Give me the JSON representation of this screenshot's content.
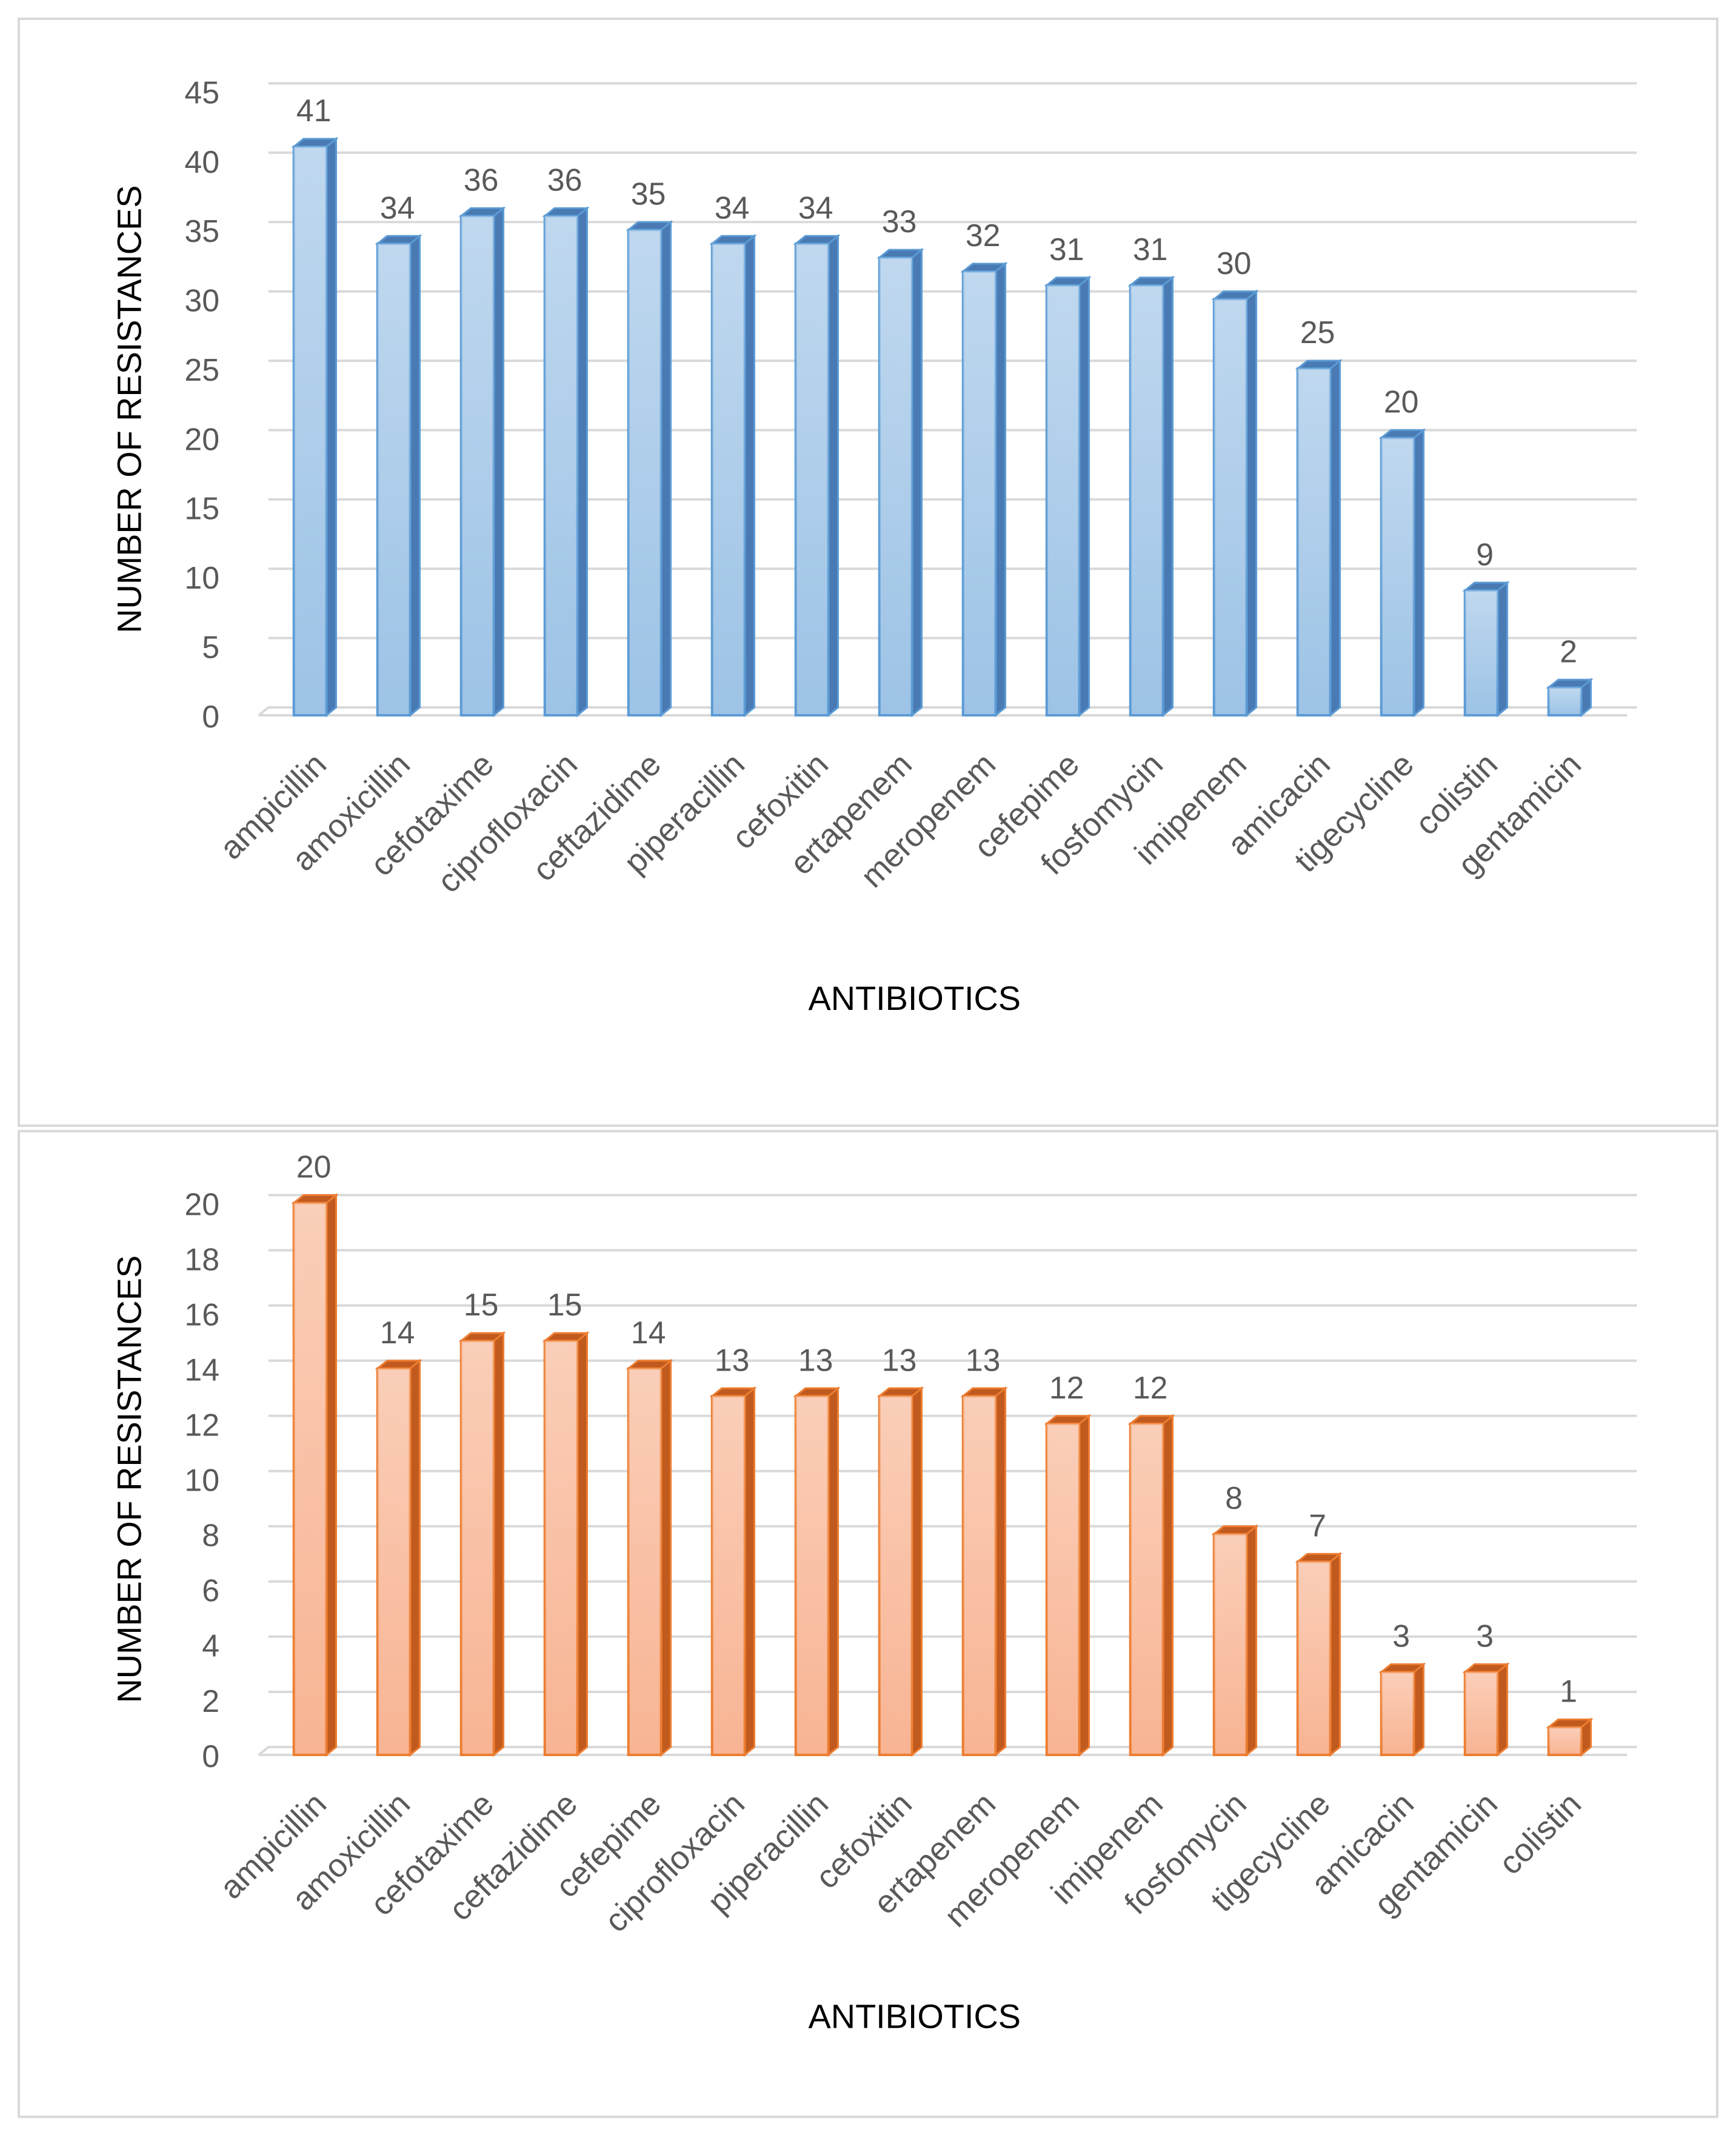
{
  "chart_data": [
    {
      "type": "bar",
      "style": "3d-column",
      "color": "#9dc3e6",
      "color_dark": "#4a7ab3",
      "color_edge": "#5b9bd5",
      "categories": [
        "ampicillin",
        "amoxicillin",
        "cefotaxime",
        "ciprofloxacin",
        "ceftazidime",
        "piperacillin",
        "cefoxitin",
        "ertapenem",
        "meropenem",
        "cefepime",
        "fosfomycin",
        "imipenem",
        "amicacin",
        "tigecycline",
        "colistin",
        "gentamicin"
      ],
      "values": [
        41,
        34,
        36,
        36,
        35,
        34,
        34,
        33,
        32,
        31,
        31,
        30,
        25,
        20,
        9,
        2
      ],
      "value_labels": [
        "41",
        "34",
        "36",
        "36",
        "35",
        "34",
        "34",
        "33",
        "32",
        "31",
        "31",
        "30",
        "25",
        "20",
        "9",
        "2"
      ],
      "yticks": [
        "0",
        "5",
        "10",
        "15",
        "20",
        "25",
        "30",
        "35",
        "40",
        "45"
      ],
      "ylim": [
        0,
        45
      ],
      "ystep": 5,
      "xlabel": "ANTIBIOTICS",
      "ylabel": "NUMBER OF RESISTANCES",
      "grid": true,
      "legend": "none"
    },
    {
      "type": "bar",
      "style": "3d-column",
      "color": "#f8b493",
      "color_dark": "#c05a1e",
      "color_edge": "#ed7d31",
      "categories": [
        "ampicillin",
        "amoxicillin",
        "cefotaxime",
        "ceftazidime",
        "cefepime",
        "ciprofloxacin",
        "piperacillin",
        "cefoxitin",
        "ertapenem",
        "meropenem",
        "imipenem",
        "fosfomycin",
        "tigecycline",
        "amicacin",
        "gentamicin",
        "colistin"
      ],
      "values": [
        20,
        14,
        15,
        15,
        14,
        13,
        13,
        13,
        13,
        12,
        12,
        8,
        7,
        3,
        3,
        1
      ],
      "value_labels": [
        "20",
        "14",
        "15",
        "15",
        "14",
        "13",
        "13",
        "13",
        "13",
        "12",
        "12",
        "8",
        "7",
        "3",
        "3",
        "1"
      ],
      "yticks": [
        "0",
        "2",
        "4",
        "6",
        "8",
        "10",
        "12",
        "14",
        "16",
        "18",
        "20"
      ],
      "ylim": [
        0,
        20
      ],
      "ystep": 2,
      "xlabel": "ANTIBIOTICS",
      "ylabel": "NUMBER OF RESISTANCES",
      "grid": true,
      "legend": "none"
    }
  ]
}
